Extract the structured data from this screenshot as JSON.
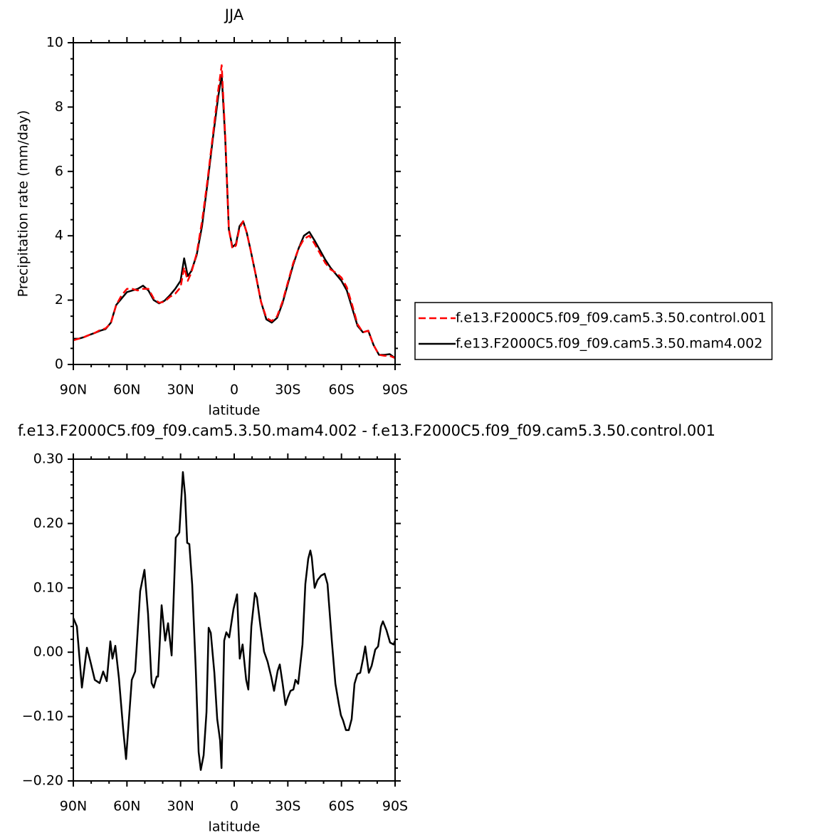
{
  "chart_data": [
    {
      "type": "line",
      "title": "JJA",
      "xlabel": "latitude",
      "ylabel": "Precipitation rate (mm/day)",
      "xlim": [
        90,
        -90
      ],
      "ylim": [
        0,
        10
      ],
      "xticks": [
        {
          "value": 90,
          "label": "90N"
        },
        {
          "value": 60,
          "label": "60N"
        },
        {
          "value": 30,
          "label": "30N"
        },
        0,
        {
          "value": -30,
          "label": "30S"
        },
        {
          "value": -60,
          "label": "60S"
        },
        {
          "value": -90,
          "label": "90S"
        }
      ],
      "yticks": [
        0,
        2,
        4,
        6,
        8,
        10
      ],
      "legend": "right",
      "x": [
        90,
        87,
        84,
        81,
        78,
        75,
        72,
        69,
        66,
        63,
        60,
        57,
        54,
        51,
        48,
        45,
        42,
        39,
        36,
        33,
        30,
        28,
        26,
        24,
        21,
        18,
        15,
        12,
        9,
        7,
        5,
        3,
        1,
        -1,
        -3,
        -5,
        -7,
        -9,
        -12,
        -15,
        -18,
        -21,
        -24,
        -27,
        -30,
        -33,
        -36,
        -39,
        -42,
        -45,
        -48,
        -51,
        -54,
        -57,
        -60,
        -63,
        -66,
        -69,
        -72,
        -75,
        -78,
        -81,
        -84,
        -87,
        -90
      ],
      "series": [
        {
          "name": "f.e13.F2000C5.f09_f09.cam5.3.50.control.001",
          "color": "#ff0000",
          "dash": true,
          "values": [
            0.75,
            0.8,
            0.85,
            0.92,
            0.98,
            1.07,
            1.12,
            1.28,
            1.85,
            2.15,
            2.35,
            2.35,
            2.3,
            2.35,
            2.35,
            2.05,
            1.92,
            1.95,
            2.1,
            2.2,
            2.4,
            3.02,
            2.6,
            2.85,
            3.45,
            4.45,
            5.7,
            7.1,
            8.5,
            9.3,
            7.1,
            4.2,
            3.6,
            3.7,
            4.25,
            4.45,
            4.1,
            3.6,
            2.8,
            1.95,
            1.45,
            1.35,
            1.5,
            1.95,
            2.55,
            3.15,
            3.6,
            3.9,
            4.0,
            3.75,
            3.45,
            3.15,
            2.95,
            2.85,
            2.7,
            2.4,
            1.85,
            1.25,
            1.0,
            1.05,
            0.6,
            0.3,
            0.27,
            0.27,
            0.2
          ]
        },
        {
          "name": "f.e13.F2000C5.f09_f09.cam5.3.50.mam4.002",
          "color": "#000000",
          "dash": false,
          "values": [
            0.8,
            0.8,
            0.85,
            0.92,
            0.98,
            1.05,
            1.1,
            1.3,
            1.85,
            2.05,
            2.25,
            2.3,
            2.35,
            2.45,
            2.3,
            2.0,
            1.9,
            1.98,
            2.15,
            2.35,
            2.6,
            3.3,
            2.75,
            2.9,
            3.4,
            4.3,
            5.6,
            7.0,
            8.3,
            9.0,
            7.0,
            4.2,
            3.65,
            3.75,
            4.3,
            4.45,
            4.1,
            3.6,
            2.8,
            1.95,
            1.4,
            1.3,
            1.45,
            1.9,
            2.5,
            3.1,
            3.6,
            4.0,
            4.12,
            3.85,
            3.55,
            3.25,
            3.0,
            2.8,
            2.6,
            2.3,
            1.75,
            1.2,
            1.0,
            1.05,
            0.6,
            0.3,
            0.3,
            0.32,
            0.2
          ]
        }
      ]
    },
    {
      "type": "line",
      "title": "f.e13.F2000C5.f09_f09.cam5.3.50.mam4.002 - f.e13.F2000C5.f09_f09.cam5.3.50.control.001",
      "xlabel": "latitude",
      "xlim": [
        90,
        -90
      ],
      "ylim": [
        -0.2,
        0.3
      ],
      "xticks": [
        {
          "value": 90,
          "label": "90N"
        },
        {
          "value": 60,
          "label": "60N"
        },
        {
          "value": 30,
          "label": "30N"
        },
        0,
        {
          "value": -30,
          "label": "30S"
        },
        {
          "value": -60,
          "label": "60S"
        },
        {
          "value": -90,
          "label": "90S"
        }
      ],
      "yticks": [
        {
          "value": 0.3,
          "label": "0.30"
        },
        {
          "value": 0.2,
          "label": "0.20"
        },
        {
          "value": 0.1,
          "label": "0.10"
        },
        {
          "value": 0,
          "label": "0.00"
        },
        {
          "value": -0.1,
          "label": "−0.10"
        },
        {
          "value": -0.2,
          "label": "−0.20"
        }
      ],
      "color": "#000000",
      "x": [
        90,
        88,
        85.2,
        82.4,
        80.4,
        78,
        75.3,
        73.3,
        71.3,
        69.3,
        68.1,
        66.5,
        64.5,
        62.1,
        60.5,
        57.3,
        55.4,
        52.6,
        50.2,
        48.2,
        46.2,
        45,
        43.4,
        42.6,
        40.6,
        38.6,
        37,
        35,
        32.7,
        30.7,
        28.7,
        27.5,
        26.3,
        25.1,
        23.5,
        21.5,
        19.9,
        18.7,
        17.1,
        15.5,
        14.3,
        13.1,
        11.1,
        9.5,
        7.9,
        7.1,
        5.6,
        4.4,
        2.8,
        0.4,
        -1.6,
        -3.1,
        -4.7,
        -6.7,
        -7.9,
        -9.6,
        -11.6,
        -12.7,
        -14.7,
        -16.7,
        -18.7,
        -20.7,
        -22.3,
        -24.3,
        -25.5,
        -27.1,
        -28.7,
        -29.9,
        -31.5,
        -33.1,
        -34.3,
        -35.8,
        -38.2,
        -39.8,
        -41.4,
        -42.6,
        -43.4,
        -45,
        -46.6,
        -48.6,
        -50.6,
        -52.2,
        -54.6,
        -56.6,
        -58.5,
        -59.7,
        -60.9,
        -62.5,
        -64.1,
        -65.7,
        -67.3,
        -68.9,
        -70.5,
        -72.1,
        -73.3,
        -75.3,
        -76.9,
        -78.9,
        -80.5,
        -82.1,
        -83.2,
        -85.2,
        -87.2,
        -89.2,
        -90
      ],
      "values": [
        0.053,
        0.04,
        -0.055,
        0.007,
        -0.015,
        -0.043,
        -0.048,
        -0.03,
        -0.045,
        0.017,
        -0.01,
        0.01,
        -0.04,
        -0.12,
        -0.166,
        -0.043,
        -0.03,
        0.095,
        0.128,
        0.06,
        -0.048,
        -0.055,
        -0.038,
        -0.038,
        0.073,
        0.018,
        0.045,
        -0.005,
        0.178,
        0.186,
        0.28,
        0.245,
        0.17,
        0.168,
        0.105,
        -0.027,
        -0.155,
        -0.183,
        -0.16,
        -0.093,
        0.038,
        0.03,
        -0.032,
        -0.104,
        -0.137,
        -0.18,
        0.018,
        0.031,
        0.023,
        0.067,
        0.09,
        -0.01,
        0.012,
        -0.043,
        -0.058,
        0.04,
        0.092,
        0.085,
        0.04,
        0.001,
        -0.015,
        -0.038,
        -0.06,
        -0.029,
        -0.019,
        -0.049,
        -0.082,
        -0.071,
        -0.06,
        -0.058,
        -0.043,
        -0.049,
        0.012,
        0.106,
        0.145,
        0.158,
        0.147,
        0.1,
        0.112,
        0.119,
        0.122,
        0.106,
        0.018,
        -0.049,
        -0.08,
        -0.098,
        -0.106,
        -0.121,
        -0.121,
        -0.104,
        -0.049,
        -0.034,
        -0.032,
        -0.01,
        0.009,
        -0.032,
        -0.021,
        0.004,
        0.009,
        0.04,
        0.048,
        0.034,
        0.015,
        0.012,
        0.018
      ]
    }
  ]
}
